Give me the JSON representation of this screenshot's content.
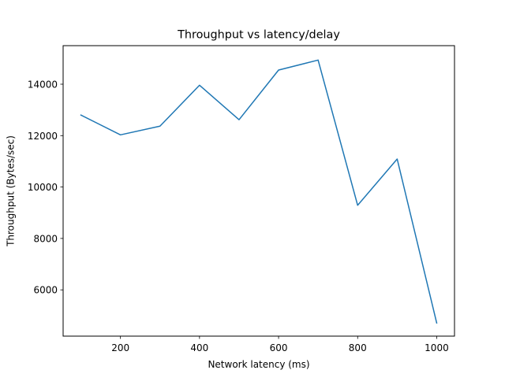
{
  "chart_data": {
    "type": "line",
    "title": "Throughput vs latency/delay",
    "xlabel": "Network latency (ms)",
    "ylabel": "Throughput (Bytes/sec)",
    "xlim": [
      55,
      1045
    ],
    "ylim": [
      4200,
      15500
    ],
    "xticks": [
      200,
      400,
      600,
      800,
      1000
    ],
    "yticks": [
      6000,
      8000,
      10000,
      12000,
      14000
    ],
    "grid": false,
    "series": [
      {
        "color": "#1f77b4",
        "x": [
          100,
          200,
          300,
          400,
          500,
          600,
          700,
          800,
          900,
          1000
        ],
        "y": [
          12800,
          12030,
          12370,
          13960,
          12620,
          14550,
          14940,
          9290,
          11090,
          4710
        ]
      }
    ]
  }
}
